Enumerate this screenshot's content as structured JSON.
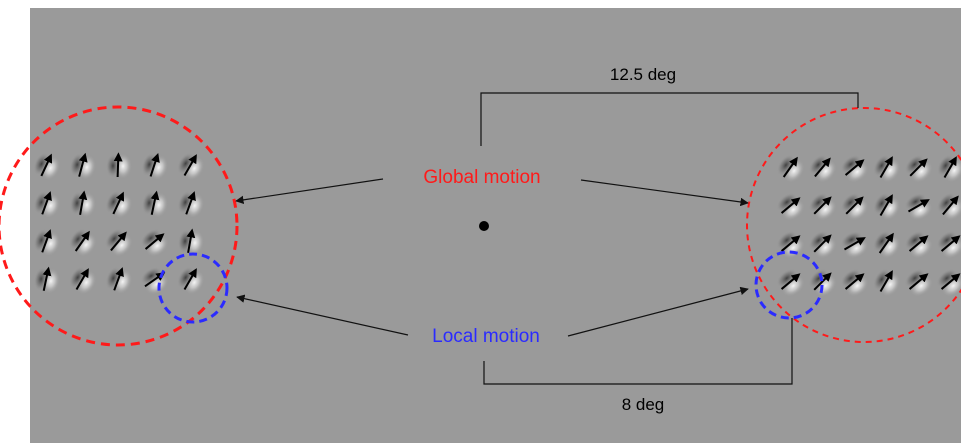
{
  "labels": {
    "global_motion": "Global motion",
    "local_motion": "Local motion",
    "distance_top": "12.5 deg",
    "distance_bottom": "8 deg"
  },
  "colors": {
    "background": "#9a9a9a",
    "global_circle": "#ff1a1a",
    "local_circle": "#2b2bff",
    "global_text": "#ff1a1a",
    "local_text": "#2b2bff",
    "line": "#111111",
    "fixation": "#000000"
  },
  "left_patch": {
    "rows": 4,
    "cols": 5,
    "arrow_angles_deg": [
      [
        -65,
        -75,
        -88,
        -72,
        -60
      ],
      [
        -70,
        -80,
        -65,
        -78,
        -70
      ],
      [
        -70,
        -55,
        -50,
        -40,
        -80
      ],
      [
        -78,
        -60,
        -70,
        -35,
        -60
      ]
    ]
  },
  "right_patch": {
    "rows": 4,
    "cols": 6,
    "arrow_angles_deg": [
      [
        -55,
        -50,
        -40,
        -60,
        -45,
        -60
      ],
      [
        -40,
        -45,
        -45,
        -60,
        -30,
        -50
      ],
      [
        -40,
        -45,
        -30,
        -55,
        -40,
        -40
      ],
      [
        -40,
        -45,
        -40,
        -60,
        -40,
        -40
      ]
    ]
  },
  "icons": {
    "fixation": "fixation-dot-icon",
    "gabor": "gabor-patch-icon",
    "motion_arrow": "motion-direction-arrow-icon"
  }
}
